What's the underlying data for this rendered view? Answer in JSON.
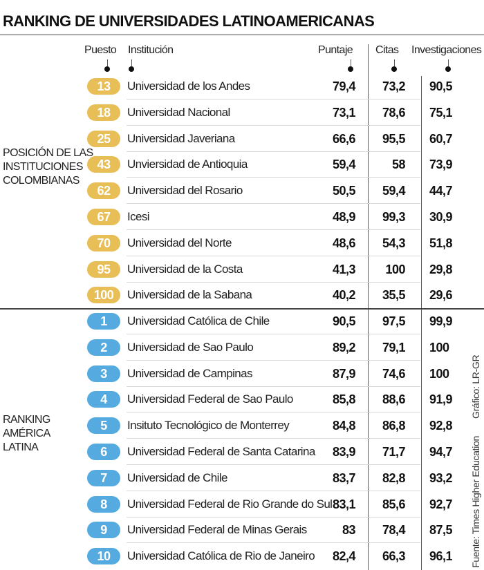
{
  "title": "RANKING DE UNIVERSIDADES LATINOAMERICANAS",
  "headers": {
    "puesto": "Puesto",
    "institucion": "Institución",
    "puntaje": "Puntaje",
    "citas": "Citas",
    "investigaciones": "Investigaciones"
  },
  "colors": {
    "colombia_pill": "#E8BE57",
    "latam_pill": "#55ABE0"
  },
  "sections": [
    {
      "label_lines": [
        "POSICIÓN DE LAS",
        "INSTITUCIONES",
        "COLOMBIANAS"
      ],
      "rows": [
        {
          "puesto": "13",
          "institucion": "Universidad de los Andes",
          "puntaje": "79,4",
          "citas": "73,2",
          "investigaciones": "90,5"
        },
        {
          "puesto": "18",
          "institucion": "Universidad Nacional",
          "puntaje": "73,1",
          "citas": "78,6",
          "investigaciones": "75,1"
        },
        {
          "puesto": "25",
          "institucion": "Universidad Javeriana",
          "puntaje": "66,6",
          "citas": "95,5",
          "investigaciones": "60,7"
        },
        {
          "puesto": "43",
          "institucion": "Unviersidad de Antioquia",
          "puntaje": "59,4",
          "citas": "58",
          "investigaciones": "73,9"
        },
        {
          "puesto": "62",
          "institucion": "Universidad del Rosario",
          "puntaje": "50,5",
          "citas": "59,4",
          "investigaciones": "44,7"
        },
        {
          "puesto": "67",
          "institucion": "Icesi",
          "puntaje": "48,9",
          "citas": "99,3",
          "investigaciones": "30,9"
        },
        {
          "puesto": "70",
          "institucion": "Universidad del Norte",
          "puntaje": "48,6",
          "citas": "54,3",
          "investigaciones": "51,8"
        },
        {
          "puesto": "95",
          "institucion": "Universidad de la Costa",
          "puntaje": "41,3",
          "citas": "100",
          "investigaciones": "29,8"
        },
        {
          "puesto": "100",
          "institucion": "Universidad de la Sabana",
          "puntaje": "40,2",
          "citas": "35,5",
          "investigaciones": "29,6"
        }
      ]
    },
    {
      "label_lines": [
        "RANKING",
        "AMÉRICA",
        "LATINA"
      ],
      "rows": [
        {
          "puesto": "1",
          "institucion": "Universidad Católica de Chile",
          "puntaje": "90,5",
          "citas": "97,5",
          "investigaciones": "99,9"
        },
        {
          "puesto": "2",
          "institucion": "Universidad de Sao Paulo",
          "puntaje": "89,2",
          "citas": "79,1",
          "investigaciones": "100"
        },
        {
          "puesto": "3",
          "institucion": "Universidad de Campinas",
          "puntaje": "87,9",
          "citas": "74,6",
          "investigaciones": "100"
        },
        {
          "puesto": "4",
          "institucion": "Universidad Federal de Sao Paulo",
          "puntaje": "85,8",
          "citas": "88,6",
          "investigaciones": "91,9"
        },
        {
          "puesto": "5",
          "institucion": "Insituto Tecnológico de Monterrey",
          "puntaje": "84,8",
          "citas": "86,8",
          "investigaciones": "92,8"
        },
        {
          "puesto": "6",
          "institucion": "Universidad Federal de Santa Catarina",
          "puntaje": "83,9",
          "citas": "71,7",
          "investigaciones": "94,7"
        },
        {
          "puesto": "7",
          "institucion": "Universidad de Chile",
          "puntaje": "83,7",
          "citas": "82,8",
          "investigaciones": "93,2"
        },
        {
          "puesto": "8",
          "institucion": "Universidad Federal de Rio Grande do Sul",
          "puntaje": "83,1",
          "citas": "85,6",
          "investigaciones": "92,7"
        },
        {
          "puesto": "9",
          "institucion": "Universidad Federal de Minas Gerais",
          "puntaje": "83",
          "citas": "78,4",
          "investigaciones": "87,5"
        },
        {
          "puesto": "10",
          "institucion": "Universidad Católica de Rio de Janeiro",
          "puntaje": "82,4",
          "citas": "66,3",
          "investigaciones": "96,1"
        }
      ]
    }
  ],
  "credits": {
    "grafico": "Gráfico: LR-GR",
    "fuente": "Fuente: Times Higher Education"
  }
}
